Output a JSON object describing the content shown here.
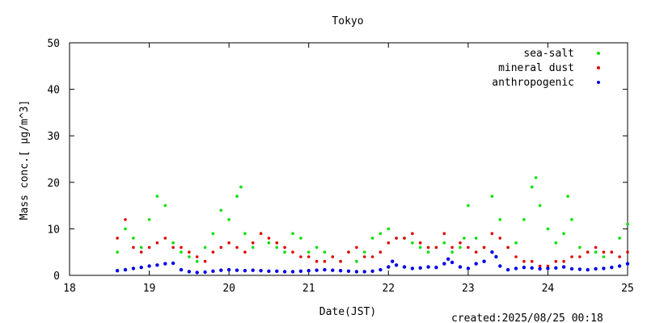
{
  "chart_data": {
    "type": "scatter",
    "title": "Tokyo",
    "xlabel": "Date(JST)",
    "ylabel": "Mass conc.[ μg/m^3]",
    "xlim": [
      18,
      25
    ],
    "ylim": [
      0,
      50
    ],
    "x_ticks": [
      18,
      19,
      20,
      21,
      22,
      23,
      24,
      25
    ],
    "y_ticks": [
      0,
      10,
      20,
      30,
      40,
      50
    ],
    "x_tick_labels": [
      "18",
      "19",
      "20",
      "21",
      "22",
      "23",
      "24",
      "25"
    ],
    "y_tick_labels": [
      "0",
      "10",
      "20",
      "30",
      "40",
      "50"
    ],
    "grid": false,
    "legend_position": "top-right",
    "series": [
      {
        "name": "sea-salt",
        "color": "#00e000",
        "x": [
          18.6,
          18.7,
          18.8,
          18.9,
          19.0,
          19.1,
          19.2,
          19.3,
          19.4,
          19.5,
          19.6,
          19.7,
          19.8,
          19.9,
          20.0,
          20.1,
          20.15,
          20.2,
          20.3,
          20.4,
          20.5,
          20.6,
          20.7,
          20.8,
          20.9,
          21.0,
          21.1,
          21.2,
          21.3,
          21.4,
          21.5,
          21.6,
          21.7,
          21.8,
          21.9,
          22.0,
          22.1,
          22.2,
          22.3,
          22.4,
          22.5,
          22.6,
          22.7,
          22.8,
          22.9,
          22.95,
          23.0,
          23.1,
          23.2,
          23.3,
          23.4,
          23.5,
          23.6,
          23.7,
          23.8,
          23.85,
          23.9,
          24.0,
          24.1,
          24.2,
          24.25,
          24.3,
          24.4,
          24.5,
          24.6,
          24.7,
          24.8,
          24.9,
          25.0
        ],
        "y": [
          5,
          10,
          8,
          6,
          12,
          17,
          15,
          7,
          5,
          4,
          3,
          6,
          9,
          14,
          12,
          17,
          19,
          9,
          6,
          9,
          7,
          6,
          5,
          9,
          8,
          5,
          6,
          5,
          4,
          3,
          5,
          3,
          5,
          8,
          9,
          10,
          8,
          8,
          7,
          6,
          5,
          6,
          7,
          5,
          6,
          8,
          15,
          8,
          6,
          17,
          12,
          6,
          7,
          12,
          19,
          21,
          15,
          10,
          7,
          9,
          17,
          12,
          6,
          5,
          5,
          4,
          5,
          8,
          11
        ]
      },
      {
        "name": "mineral dust",
        "color": "#e00000",
        "x": [
          18.6,
          18.7,
          18.8,
          18.9,
          19.0,
          19.1,
          19.2,
          19.3,
          19.4,
          19.5,
          19.6,
          19.7,
          19.8,
          19.9,
          20.0,
          20.1,
          20.2,
          20.3,
          20.4,
          20.5,
          20.6,
          20.7,
          20.8,
          20.9,
          21.0,
          21.1,
          21.2,
          21.3,
          21.4,
          21.5,
          21.6,
          21.7,
          21.8,
          21.9,
          22.0,
          22.1,
          22.2,
          22.3,
          22.4,
          22.5,
          22.6,
          22.7,
          22.8,
          22.9,
          23.0,
          23.1,
          23.2,
          23.3,
          23.4,
          23.5,
          23.6,
          23.7,
          23.8,
          23.9,
          24.0,
          24.1,
          24.2,
          24.3,
          24.4,
          24.5,
          24.6,
          24.7,
          24.8,
          24.9,
          25.0
        ],
        "y": [
          8,
          12,
          6,
          5,
          6,
          7,
          8,
          6,
          6,
          5,
          4,
          3,
          5,
          6,
          7,
          6,
          5,
          7,
          9,
          8,
          7,
          6,
          5,
          4,
          4,
          3,
          3,
          4,
          3,
          5,
          6,
          4,
          4,
          5,
          7,
          8,
          8,
          9,
          7,
          6,
          6,
          9,
          6,
          7,
          6,
          5,
          6,
          9,
          8,
          6,
          4,
          3,
          3,
          2,
          2,
          3,
          3,
          4,
          4,
          5,
          6,
          5,
          5,
          4,
          5
        ]
      },
      {
        "name": "anthropogenic",
        "color": "#0000e8",
        "x": [
          18.6,
          18.7,
          18.8,
          18.9,
          19.0,
          19.1,
          19.2,
          19.3,
          19.4,
          19.5,
          19.6,
          19.7,
          19.8,
          19.9,
          20.0,
          20.1,
          20.2,
          20.3,
          20.4,
          20.5,
          20.6,
          20.7,
          20.8,
          20.9,
          21.0,
          21.1,
          21.2,
          21.3,
          21.4,
          21.5,
          21.6,
          21.7,
          21.8,
          21.9,
          22.0,
          22.05,
          22.1,
          22.2,
          22.3,
          22.4,
          22.5,
          22.6,
          22.7,
          22.75,
          22.8,
          22.9,
          23.0,
          23.1,
          23.2,
          23.3,
          23.35,
          23.4,
          23.5,
          23.6,
          23.7,
          23.8,
          23.9,
          24.0,
          24.1,
          24.2,
          24.3,
          24.4,
          24.5,
          24.6,
          24.7,
          24.8,
          24.9,
          25.0
        ],
        "y": [
          1.0,
          1.2,
          1.5,
          1.7,
          2.0,
          2.2,
          2.5,
          2.6,
          1.2,
          0.8,
          0.6,
          0.7,
          0.9,
          1.1,
          1.2,
          1.1,
          1.0,
          1.1,
          1.0,
          0.9,
          0.9,
          0.8,
          0.8,
          0.9,
          1.0,
          1.1,
          1.2,
          1.1,
          1.0,
          0.9,
          0.8,
          0.8,
          0.9,
          1.2,
          1.8,
          3.0,
          2.2,
          1.8,
          1.5,
          1.6,
          1.8,
          1.7,
          2.5,
          3.5,
          2.8,
          1.8,
          1.5,
          2.5,
          3.0,
          5.0,
          4.0,
          2.0,
          1.2,
          1.5,
          1.7,
          1.6,
          1.4,
          1.5,
          1.6,
          1.8,
          1.4,
          1.3,
          1.2,
          1.4,
          1.5,
          1.7,
          2.0,
          2.5
        ]
      }
    ]
  },
  "footer": {
    "created": "created:2025/08/25 00:18"
  }
}
